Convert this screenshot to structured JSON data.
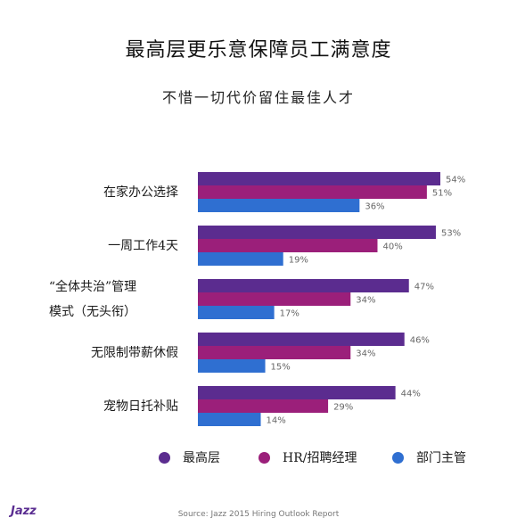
{
  "chart_data": {
    "type": "bar",
    "orientation": "horizontal",
    "title": "最高层更乐意保障员工满意度",
    "subtitle": "不惜一切代价留住最佳人才",
    "categories": [
      [
        "在家办公选择"
      ],
      [
        "一周工作4天"
      ],
      [
        "“全体共治”管理",
        "模式（无头衔）"
      ],
      [
        "无限制带薪休假"
      ],
      [
        "宠物日托补贴"
      ]
    ],
    "series": [
      {
        "name": "最高层",
        "color": "#5b2c8f",
        "values": [
          54,
          53,
          47,
          46,
          44
        ],
        "labels": [
          "54%",
          "53%",
          "47%",
          "46%",
          "44%"
        ]
      },
      {
        "name": "HR/招聘经理",
        "color": "#9b1f7a",
        "values": [
          51,
          40,
          34,
          34,
          29
        ],
        "labels": [
          "51%",
          "40%",
          "34%",
          "34%",
          "29%"
        ]
      },
      {
        "name": "部门主管",
        "color": "#2f6fd1",
        "values": [
          36,
          19,
          17,
          15,
          14
        ],
        "labels": [
          "36%",
          "19%",
          "17%",
          "15%",
          "14%"
        ]
      }
    ],
    "xlim": [
      0,
      60
    ],
    "grid": false,
    "legend": "bottom"
  },
  "logo_text": "Jazz",
  "source": "Source: Jazz 2015 Hiring Outlook Report"
}
